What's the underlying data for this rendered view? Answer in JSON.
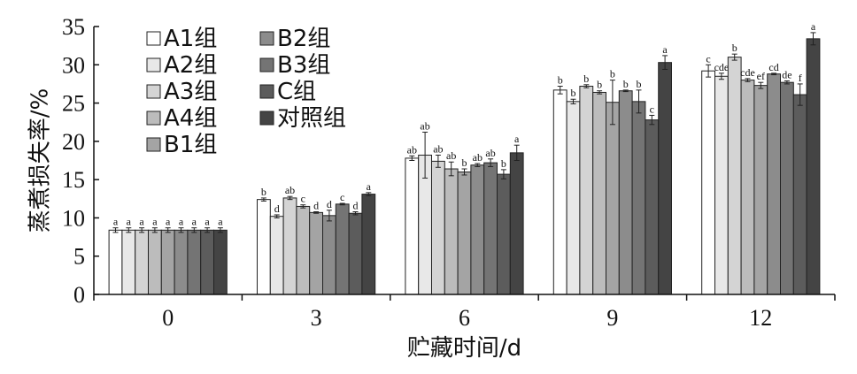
{
  "chart_data": {
    "type": "bar",
    "xlabel": "贮藏时间/d",
    "ylabel": "蒸煮损失率/%",
    "ylim": [
      0,
      35
    ],
    "yticks": [
      0,
      5,
      10,
      15,
      20,
      25,
      30,
      35
    ],
    "categories": [
      "0",
      "3",
      "6",
      "9",
      "12"
    ],
    "legend_position": "top-left",
    "series": [
      {
        "name": "A1组",
        "color": "#ffffff",
        "values": [
          8.4,
          12.4,
          17.8,
          26.7,
          29.2
        ],
        "errors": [
          0.3,
          0.2,
          0.3,
          0.5,
          0.8
        ],
        "labels": [
          "a",
          "b",
          "ab",
          "b",
          "c"
        ]
      },
      {
        "name": "A2组",
        "color": "#e8e8e8",
        "values": [
          8.4,
          10.2,
          18.2,
          25.2,
          28.5
        ],
        "errors": [
          0.3,
          0.2,
          3.0,
          0.3,
          0.4
        ],
        "labels": [
          "a",
          "d",
          "ab",
          "b",
          "cde"
        ]
      },
      {
        "name": "A3组",
        "color": "#d4d4d4",
        "values": [
          8.4,
          12.6,
          17.4,
          27.2,
          31.0
        ],
        "errors": [
          0.3,
          0.2,
          0.8,
          0.2,
          0.4
        ],
        "labels": [
          "a",
          "ab",
          "ab",
          "b",
          "b"
        ]
      },
      {
        "name": "A4组",
        "color": "#bcbcbc",
        "values": [
          8.4,
          11.5,
          16.4,
          26.4,
          28.0
        ],
        "errors": [
          0.3,
          0.2,
          0.9,
          0.2,
          0.2
        ],
        "labels": [
          "a",
          "c",
          "ab",
          "b",
          "cde"
        ]
      },
      {
        "name": "B1组",
        "color": "#a4a4a4",
        "values": [
          8.4,
          10.7,
          16.0,
          25.1,
          27.3
        ],
        "errors": [
          0.3,
          0.1,
          0.4,
          2.9,
          0.4
        ],
        "labels": [
          "a",
          "d",
          "b",
          "b",
          "ef"
        ]
      },
      {
        "name": "B2组",
        "color": "#8c8c8c",
        "values": [
          8.4,
          10.3,
          16.9,
          26.6,
          28.8
        ],
        "errors": [
          0.3,
          0.7,
          0.2,
          0.1,
          0.1
        ],
        "labels": [
          "a",
          "d",
          "ab",
          "b",
          "cd"
        ]
      },
      {
        "name": "B3组",
        "color": "#747474",
        "values": [
          8.4,
          11.8,
          17.2,
          25.2,
          27.7
        ],
        "errors": [
          0.3,
          0.1,
          0.5,
          1.5,
          0.2
        ],
        "labels": [
          "a",
          "c",
          "ab",
          "b",
          "de"
        ]
      },
      {
        "name": "C组",
        "color": "#5c5c5c",
        "values": [
          8.4,
          10.6,
          15.7,
          22.8,
          26.1
        ],
        "errors": [
          0.3,
          0.2,
          0.6,
          0.6,
          1.4
        ],
        "labels": [
          "a",
          "d",
          "b",
          "c",
          "f"
        ]
      },
      {
        "name": "对照组",
        "color": "#444444",
        "values": [
          8.4,
          13.1,
          18.5,
          30.3,
          33.4
        ],
        "errors": [
          0.3,
          0.2,
          1.0,
          0.9,
          0.8
        ],
        "labels": [
          "a",
          "a",
          "a",
          "a",
          "a"
        ]
      }
    ]
  }
}
